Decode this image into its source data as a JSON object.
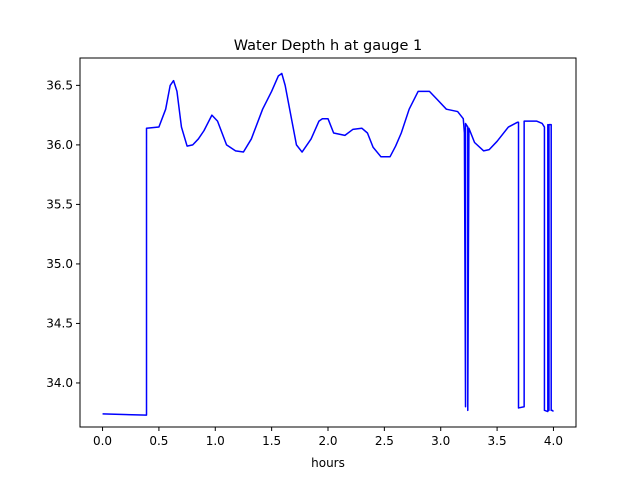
{
  "chart_data": {
    "type": "line",
    "title": "Water Depth h at gauge 1",
    "xlabel": "hours",
    "ylabel": "",
    "xlim": [
      -0.2,
      4.2
    ],
    "ylim": [
      33.63,
      36.73
    ],
    "xticks": [
      0.0,
      0.5,
      1.0,
      1.5,
      2.0,
      2.5,
      3.0,
      3.5,
      4.0
    ],
    "xtick_labels": [
      "0.0",
      "0.5",
      "1.0",
      "1.5",
      "2.0",
      "2.5",
      "3.0",
      "3.5",
      "4.0"
    ],
    "yticks": [
      34.0,
      34.5,
      35.0,
      35.5,
      36.0,
      36.5
    ],
    "ytick_labels": [
      "34.0",
      "34.5",
      "35.0",
      "35.5",
      "36.0",
      "36.5"
    ],
    "grid": false,
    "series": [
      {
        "color": "#0000ff",
        "x": [
          0.0,
          0.39,
          0.39,
          0.5,
          0.56,
          0.6,
          0.63,
          0.66,
          0.7,
          0.75,
          0.8,
          0.85,
          0.9,
          0.97,
          1.02,
          1.1,
          1.18,
          1.25,
          1.32,
          1.42,
          1.5,
          1.56,
          1.59,
          1.62,
          1.68,
          1.72,
          1.77,
          1.85,
          1.92,
          1.95,
          2.0,
          2.05,
          2.15,
          2.22,
          2.3,
          2.35,
          2.4,
          2.47,
          2.55,
          2.6,
          2.65,
          2.72,
          2.8,
          2.9,
          2.97,
          3.05,
          3.15,
          3.2,
          3.21,
          3.22,
          3.22,
          3.24,
          3.24,
          3.25,
          3.3,
          3.38,
          3.43,
          3.5,
          3.6,
          3.68,
          3.69,
          3.69,
          3.74,
          3.74,
          3.75,
          3.8,
          3.85,
          3.9,
          3.92,
          3.92,
          3.95,
          3.95,
          3.96,
          3.96,
          3.98,
          3.98,
          3.99,
          4.0
        ],
        "y": [
          33.74,
          33.73,
          36.14,
          36.15,
          36.3,
          36.5,
          36.54,
          36.45,
          36.15,
          35.99,
          36.0,
          36.05,
          36.12,
          36.25,
          36.2,
          36.0,
          35.95,
          35.94,
          36.05,
          36.3,
          36.45,
          36.58,
          36.6,
          36.5,
          36.2,
          36.0,
          35.94,
          36.05,
          36.2,
          36.22,
          36.22,
          36.1,
          36.08,
          36.13,
          36.14,
          36.1,
          35.98,
          35.9,
          35.9,
          35.99,
          36.1,
          36.3,
          36.45,
          36.45,
          36.38,
          36.3,
          36.28,
          36.22,
          36.1,
          33.8,
          36.18,
          36.15,
          33.77,
          36.14,
          36.02,
          35.95,
          35.96,
          36.03,
          36.15,
          36.19,
          36.19,
          33.79,
          33.8,
          36.2,
          36.2,
          36.2,
          36.2,
          36.18,
          36.15,
          33.77,
          33.76,
          36.17,
          33.77,
          36.17,
          36.17,
          33.77,
          33.77,
          33.76
        ]
      }
    ]
  }
}
